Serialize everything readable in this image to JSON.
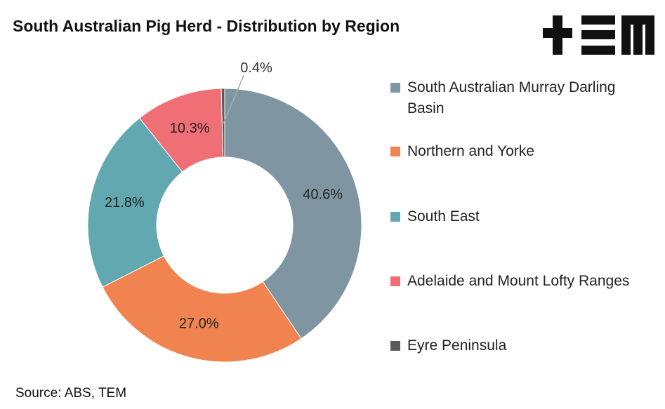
{
  "chart_data": {
    "type": "donut",
    "title": "South Australian Pig Herd - Distribution by Region",
    "categories": [
      "South Australian Murray Darling Basin",
      "Northern and Yorke",
      "South East",
      "Adelaide and Mount Lofty Ranges",
      "Eyre Peninsula"
    ],
    "values": [
      40.6,
      27.0,
      21.8,
      10.3,
      0.4
    ],
    "value_labels": [
      "40.6%",
      "27.0%",
      "21.8%",
      "10.3%",
      "0.4%"
    ],
    "colors": [
      "#7f96a2",
      "#f0834f",
      "#62a8b0",
      "#ef6f75",
      "#5a5a5a"
    ],
    "legend": "right",
    "source": "Source: ABS, TEM"
  }
}
